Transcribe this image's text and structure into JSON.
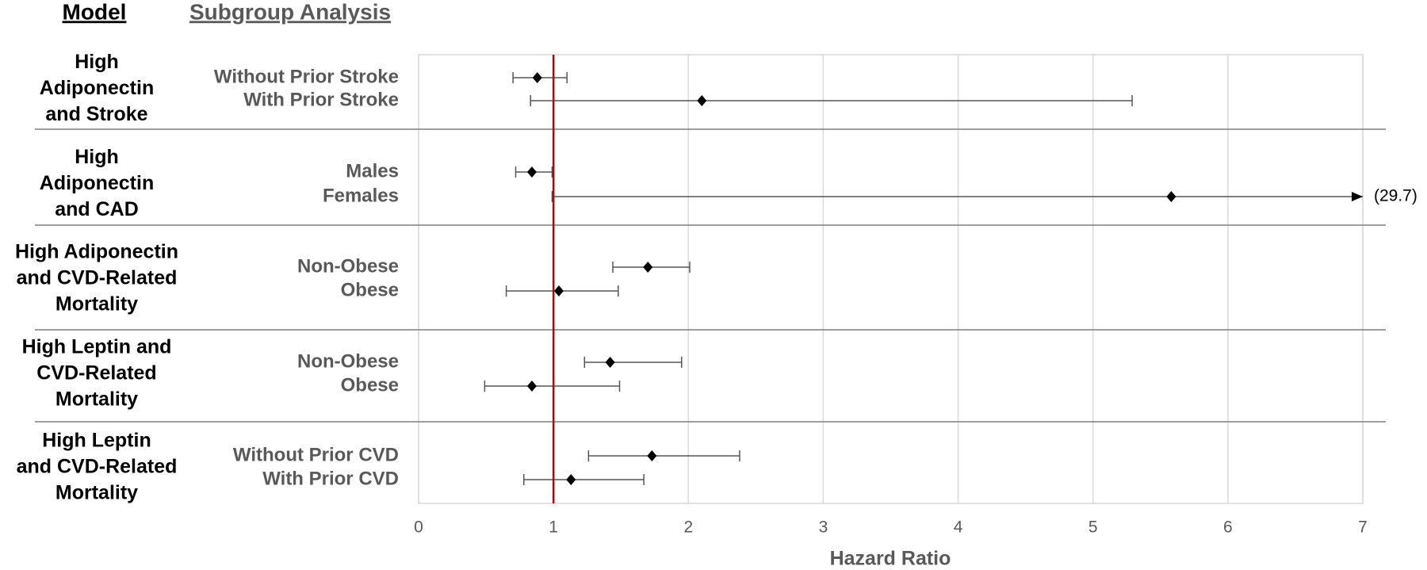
{
  "chart_data": {
    "type": "forest",
    "headers": {
      "model": "Model",
      "subgroup": "Subgroup Analysis"
    },
    "x_label": "Hazard Ratio",
    "xlim": [
      0,
      7
    ],
    "xticks": [
      0,
      1,
      2,
      3,
      4,
      5,
      6,
      7
    ],
    "grid": true,
    "ref_line": 1,
    "ref_color": "#c00000",
    "marker_color": "#000000",
    "whisker_color": "#555555",
    "groups": [
      {
        "model_lines": [
          "High",
          "Adiponectin",
          "and Stroke"
        ],
        "subgroups": [
          "Without Prior Stroke",
          "With Prior Stroke"
        ],
        "values": [
          0.88,
          2.1
        ],
        "lower": [
          0.7,
          0.83
        ],
        "upper": [
          1.1,
          5.29
        ]
      },
      {
        "model_lines": [
          "High",
          "Adiponectin",
          "and CAD"
        ],
        "subgroups": [
          "Males",
          "Females"
        ],
        "values": [
          0.84,
          5.58
        ],
        "lower": [
          0.72,
          0.99
        ],
        "upper": [
          0.99,
          29.7
        ],
        "upper_labels": [
          null,
          "(29.7)"
        ]
      },
      {
        "model_lines": [
          "High Adiponectin",
          "and CVD-Related",
          "Mortality"
        ],
        "subgroups": [
          "Non-Obese",
          "Obese"
        ],
        "values": [
          1.7,
          1.04
        ],
        "lower": [
          1.44,
          0.65
        ],
        "upper": [
          2.01,
          1.48
        ]
      },
      {
        "model_lines": [
          "High Leptin and",
          "CVD-Related",
          "Mortality"
        ],
        "subgroups": [
          "Non-Obese",
          "Obese"
        ],
        "values": [
          1.42,
          0.84
        ],
        "lower": [
          1.23,
          0.49
        ],
        "upper": [
          1.95,
          1.49
        ]
      },
      {
        "model_lines": [
          "High Leptin",
          "and CVD-Related",
          "Mortality"
        ],
        "subgroups": [
          "Without Prior CVD",
          "With Prior CVD"
        ],
        "values": [
          1.73,
          1.13
        ],
        "lower": [
          1.26,
          0.78
        ],
        "upper": [
          2.38,
          1.67
        ]
      }
    ]
  }
}
